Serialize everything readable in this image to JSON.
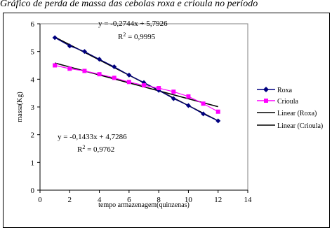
{
  "page_title": "Gráfico de perda de massa das cebolas roxa e crioula no período",
  "chart_data": {
    "type": "line",
    "title": "Gráfico de perda de massa das cebolas roxa e crioula no período",
    "xlabel": "tempo armazenagem(quinzenas)",
    "ylabel": "massa(Kg)",
    "xlim": [
      0,
      14
    ],
    "ylim": [
      0,
      6
    ],
    "x_ticks": [
      0,
      2,
      4,
      6,
      8,
      10,
      12,
      14
    ],
    "y_ticks": [
      0,
      1,
      2,
      3,
      4,
      5,
      6
    ],
    "grid": false,
    "legend_position": "right",
    "series": [
      {
        "name": "Roxa",
        "color": "#000080",
        "marker": "diamond",
        "x": [
          1,
          2,
          3,
          4,
          5,
          6,
          7,
          8,
          9,
          10,
          11,
          12
        ],
        "y": [
          5.5,
          5.2,
          5.0,
          4.72,
          4.45,
          4.15,
          3.88,
          3.6,
          3.3,
          3.05,
          2.75,
          2.5
        ]
      },
      {
        "name": "Crioula",
        "color": "#ff00ff",
        "marker": "square",
        "x": [
          1,
          2,
          3,
          4,
          5,
          6,
          7,
          8,
          9,
          10,
          11,
          12
        ],
        "y": [
          4.5,
          4.38,
          4.3,
          4.18,
          4.05,
          3.9,
          3.78,
          3.68,
          3.55,
          3.38,
          3.12,
          2.83
        ]
      }
    ],
    "trendlines": [
      {
        "name": "Linear (Roxa)",
        "color": "#000000",
        "slope": -0.2744,
        "intercept": 5.7926,
        "x_range": [
          1,
          12
        ]
      },
      {
        "name": "Linear (Crioula)",
        "color": "#000000",
        "slope": -0.1433,
        "intercept": 4.7286,
        "x_range": [
          1,
          12
        ]
      }
    ],
    "annotations": [
      {
        "equation": "y = -0,2744x + 5,7926",
        "r2_label": "R",
        "r2_value": " = 0,9995"
      },
      {
        "equation": "y = -0,1433x + 4,7286",
        "r2_label": "R",
        "r2_value": " = 0,9762"
      }
    ],
    "superscript": "2"
  }
}
